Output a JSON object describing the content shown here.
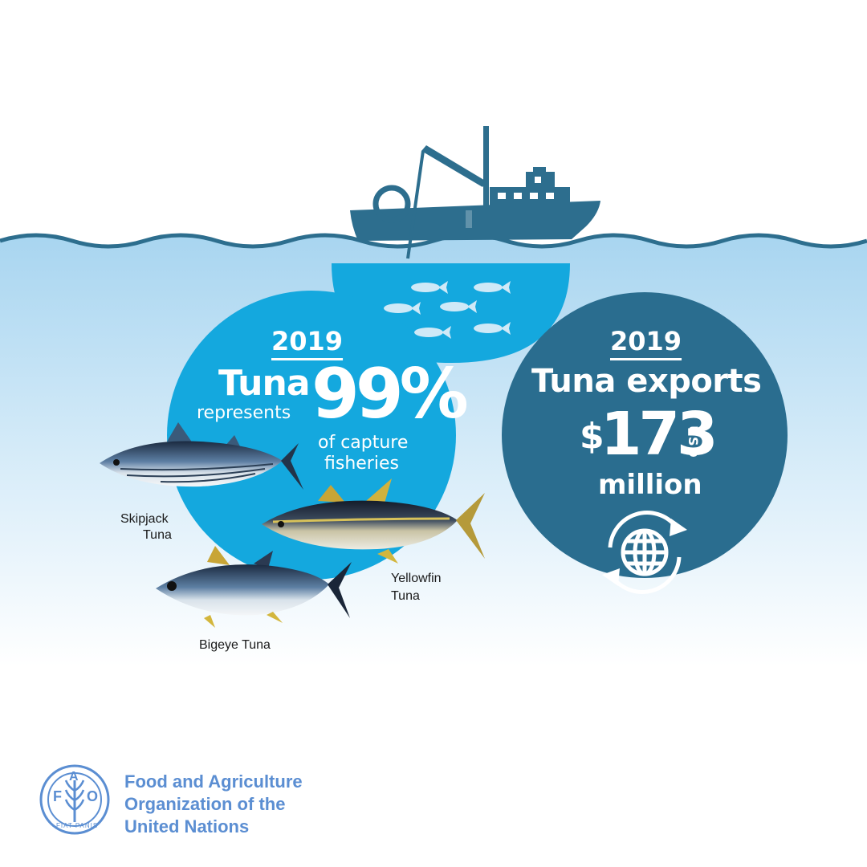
{
  "left_panel": {
    "year": "2019",
    "subject": "Tuna",
    "verb": "represents",
    "percentage": "99%",
    "description_line1": "of capture",
    "description_line2": "fisheries"
  },
  "right_panel": {
    "year": "2019",
    "title": "Tuna exports",
    "currency_symbol": "$",
    "amount": "173",
    "currency_code": "USD",
    "unit": "million",
    "icon": "globe-cycle-icon"
  },
  "fish_labels": {
    "skipjack_line1": "Skipjack",
    "skipjack_line2": "Tuna",
    "yellowfin_line1": "Yellowfin",
    "yellowfin_line2": "Tuna",
    "bigeye": "Bigeye Tuna"
  },
  "organization": {
    "line1": "Food and Agriculture",
    "line2": "Organization of the",
    "line3": "United Nations",
    "logo_text_letters": [
      "F",
      "A",
      "O"
    ],
    "logo_motto": "FIAT PANIS"
  },
  "colors": {
    "boat": "#2d6e8e",
    "light_blue_circle": "#14a8de",
    "dark_circle": "#2a6d8f",
    "fao_blue": "#5b8ed2",
    "sea_top": "#a9d6f0"
  }
}
